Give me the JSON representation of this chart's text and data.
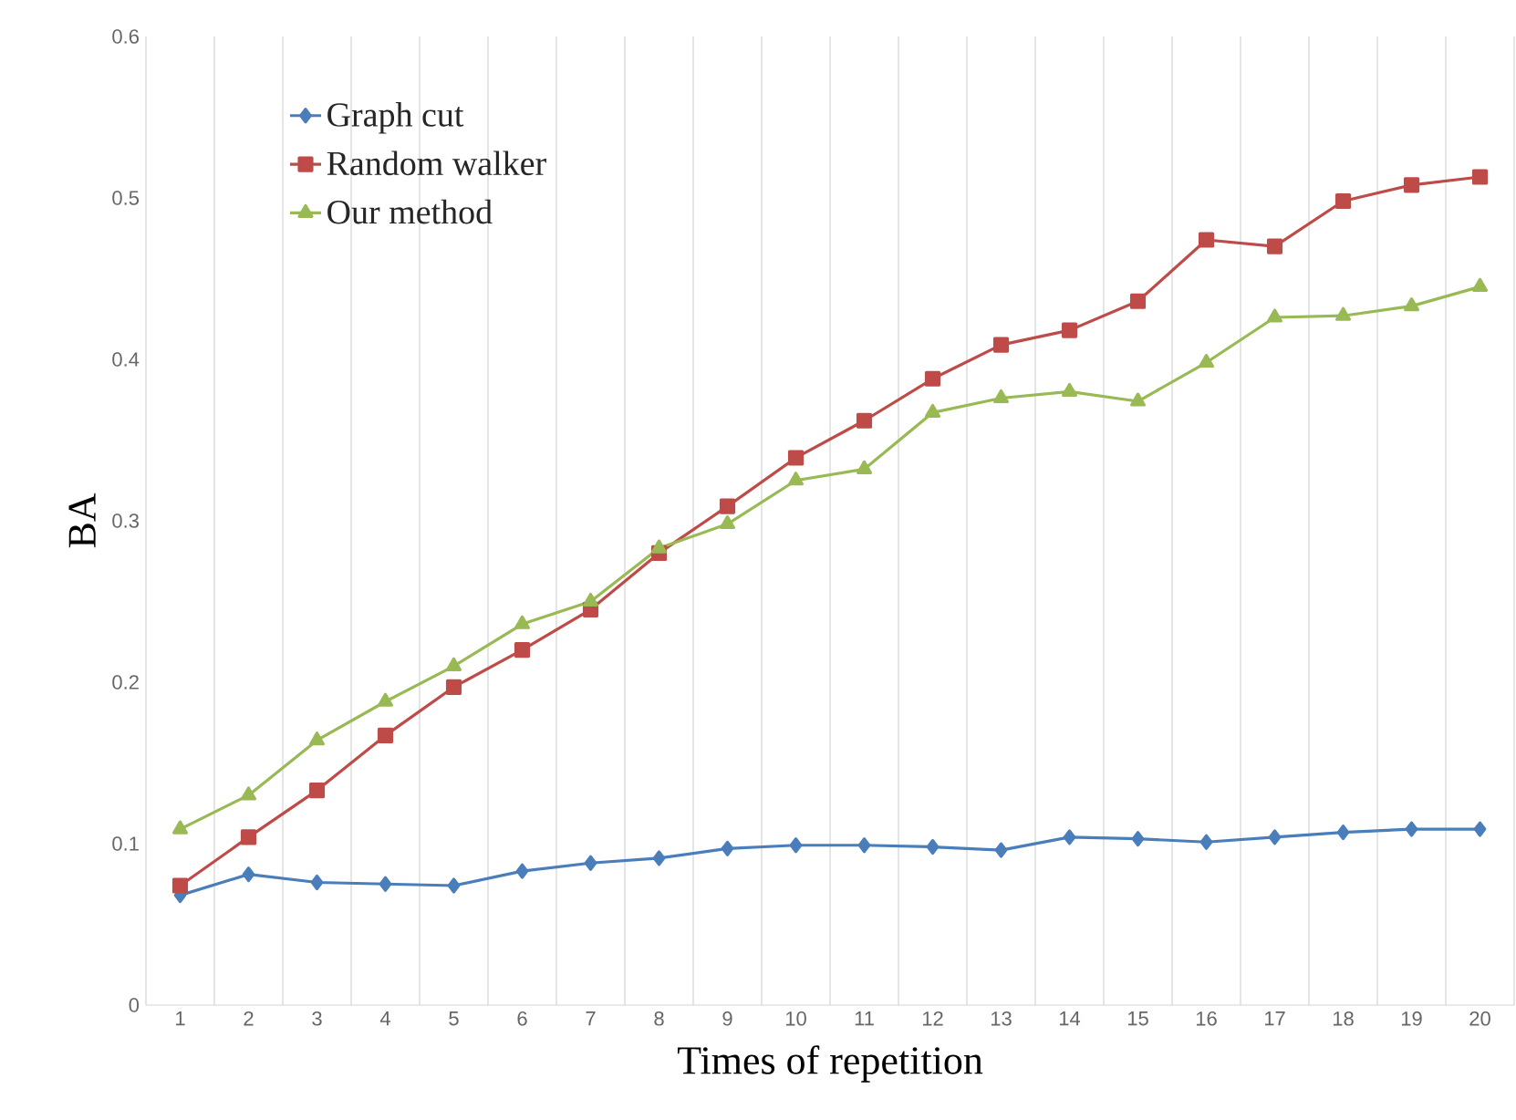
{
  "chart_data": {
    "type": "line",
    "xlabel": "Times of repetition",
    "ylabel": "BA",
    "categories": [
      "1",
      "2",
      "3",
      "4",
      "5",
      "6",
      "7",
      "8",
      "9",
      "10",
      "11",
      "12",
      "13",
      "14",
      "15",
      "16",
      "17",
      "18",
      "19",
      "20"
    ],
    "series": [
      {
        "name": "Graph cut",
        "color": "#4a7ebb",
        "marker": "diamond",
        "values": [
          0.068,
          0.081,
          0.076,
          0.075,
          0.074,
          0.083,
          0.088,
          0.091,
          0.097,
          0.099,
          0.099,
          0.098,
          0.096,
          0.104,
          0.103,
          0.101,
          0.104,
          0.107,
          0.109,
          0.109
        ]
      },
      {
        "name": "Random walker",
        "color": "#be4b48",
        "marker": "square",
        "values": [
          0.074,
          0.104,
          0.133,
          0.167,
          0.197,
          0.22,
          0.245,
          0.28,
          0.309,
          0.339,
          0.362,
          0.388,
          0.409,
          0.418,
          0.436,
          0.474,
          0.47,
          0.498,
          0.508,
          0.513
        ]
      },
      {
        "name": "Our method",
        "color": "#98b954",
        "marker": "triangle",
        "values": [
          0.109,
          0.13,
          0.164,
          0.188,
          0.21,
          0.236,
          0.25,
          0.283,
          0.298,
          0.325,
          0.332,
          0.367,
          0.376,
          0.38,
          0.374,
          0.398,
          0.426,
          0.427,
          0.433,
          0.445
        ]
      }
    ],
    "ylim": [
      0,
      0.6
    ],
    "yticks": [
      0,
      0.1,
      0.2,
      0.3,
      0.4,
      0.5,
      0.6
    ],
    "grid": "x",
    "legend": "top left",
    "line_style": "solid"
  }
}
